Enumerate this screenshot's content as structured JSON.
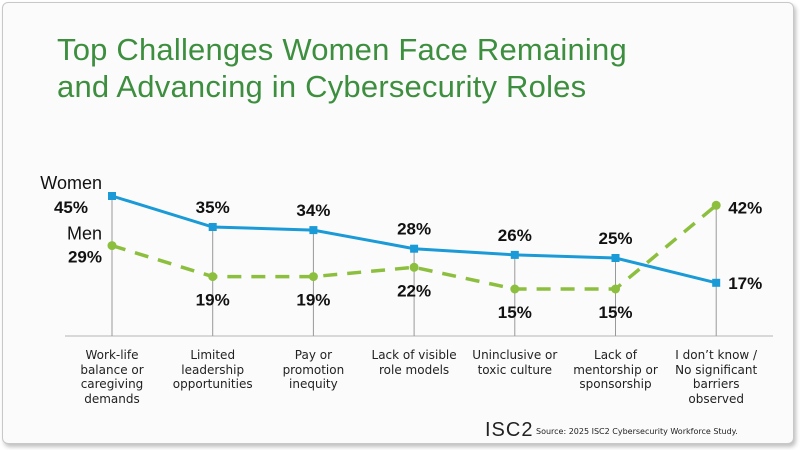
{
  "title_line1": "Top Challenges Women Face Remaining",
  "title_line2": "and Advancing in Cybersecurity Roles",
  "source": "Source: 2025 ISC2 Cybersecurity Workforce Study.",
  "logo": "ISC2",
  "chart_data": {
    "type": "line",
    "title": "Top Challenges Women Face Remaining and Advancing in Cybersecurity Roles",
    "categories": [
      "Work-life balance or caregiving demands",
      "Limited leadership opportunities",
      "Pay or promotion inequity",
      "Lack of visible role models",
      "Uninclusive or toxic culture",
      "Lack of mentorship or sponsorship",
      "I don’t know / No significant barriers observed"
    ],
    "category_lines": [
      [
        "Work-life",
        "balance or",
        "caregiving",
        "demands"
      ],
      [
        "Limited",
        "leadership",
        "opportunities"
      ],
      [
        "Pay or",
        "promotion",
        "inequity"
      ],
      [
        "Lack of visible",
        "role models"
      ],
      [
        "Uninclusive or",
        "toxic culture"
      ],
      [
        "Lack of",
        "mentorship or",
        "sponsorship"
      ],
      [
        "I don’t know /",
        "No significant",
        "barriers",
        "observed"
      ]
    ],
    "series": [
      {
        "name": "Women",
        "values": [
          45,
          35,
          34,
          28,
          26,
          25,
          17
        ],
        "color": "#1a9ad6",
        "style": "solid"
      },
      {
        "name": "Men",
        "values": [
          29,
          19,
          19,
          22,
          15,
          15,
          42
        ],
        "color": "#8dbf3f",
        "style": "dashed"
      }
    ],
    "unit": "%",
    "ylim": [
      0,
      50
    ],
    "grid": false
  }
}
